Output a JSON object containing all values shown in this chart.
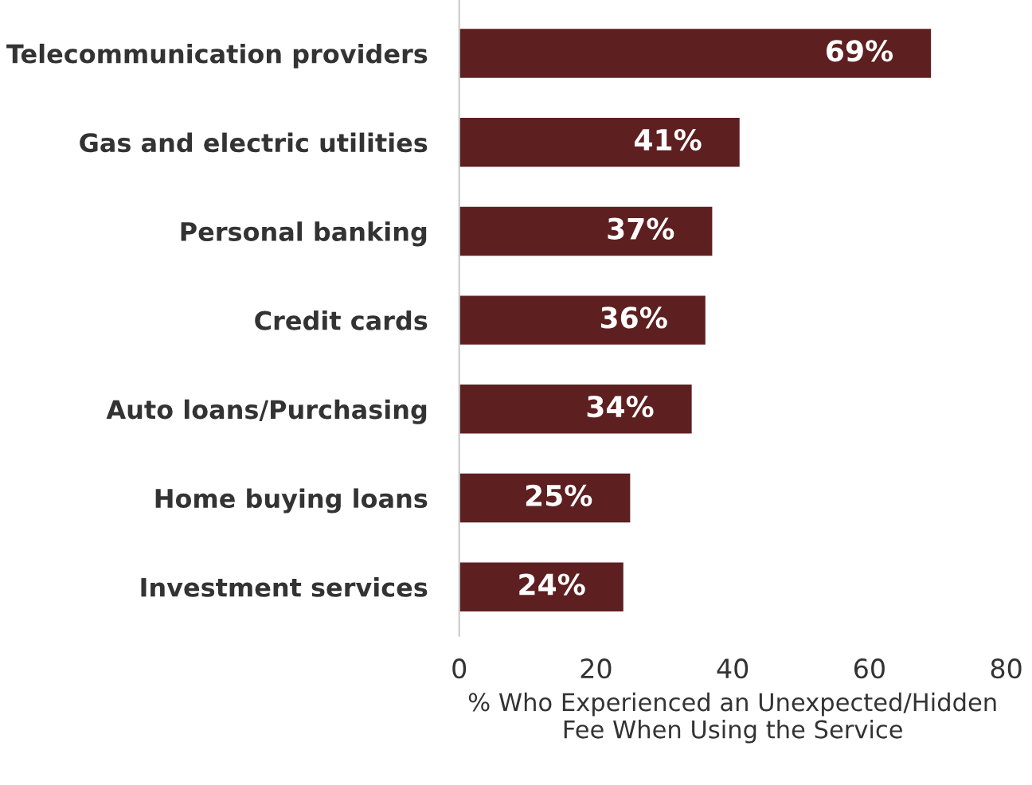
{
  "chart_data": {
    "type": "bar",
    "orientation": "horizontal",
    "categories": [
      "Telecommunication providers",
      "Gas and electric utilities",
      "Personal banking",
      "Credit cards",
      "Auto loans/Purchasing",
      "Home buying loans",
      "Investment services"
    ],
    "values": [
      69,
      41,
      37,
      36,
      34,
      25,
      24
    ],
    "value_labels": [
      "69%",
      "41%",
      "37%",
      "36%",
      "34%",
      "25%",
      "24%"
    ],
    "color": "#5e1f20",
    "xlabel": "% Who Experienced an Unexpected/Hidden\nFee When Using the Service",
    "xlim": [
      0,
      80
    ],
    "xticks": [
      0,
      20,
      40,
      60,
      80
    ],
    "grid": false,
    "legend": false
  }
}
